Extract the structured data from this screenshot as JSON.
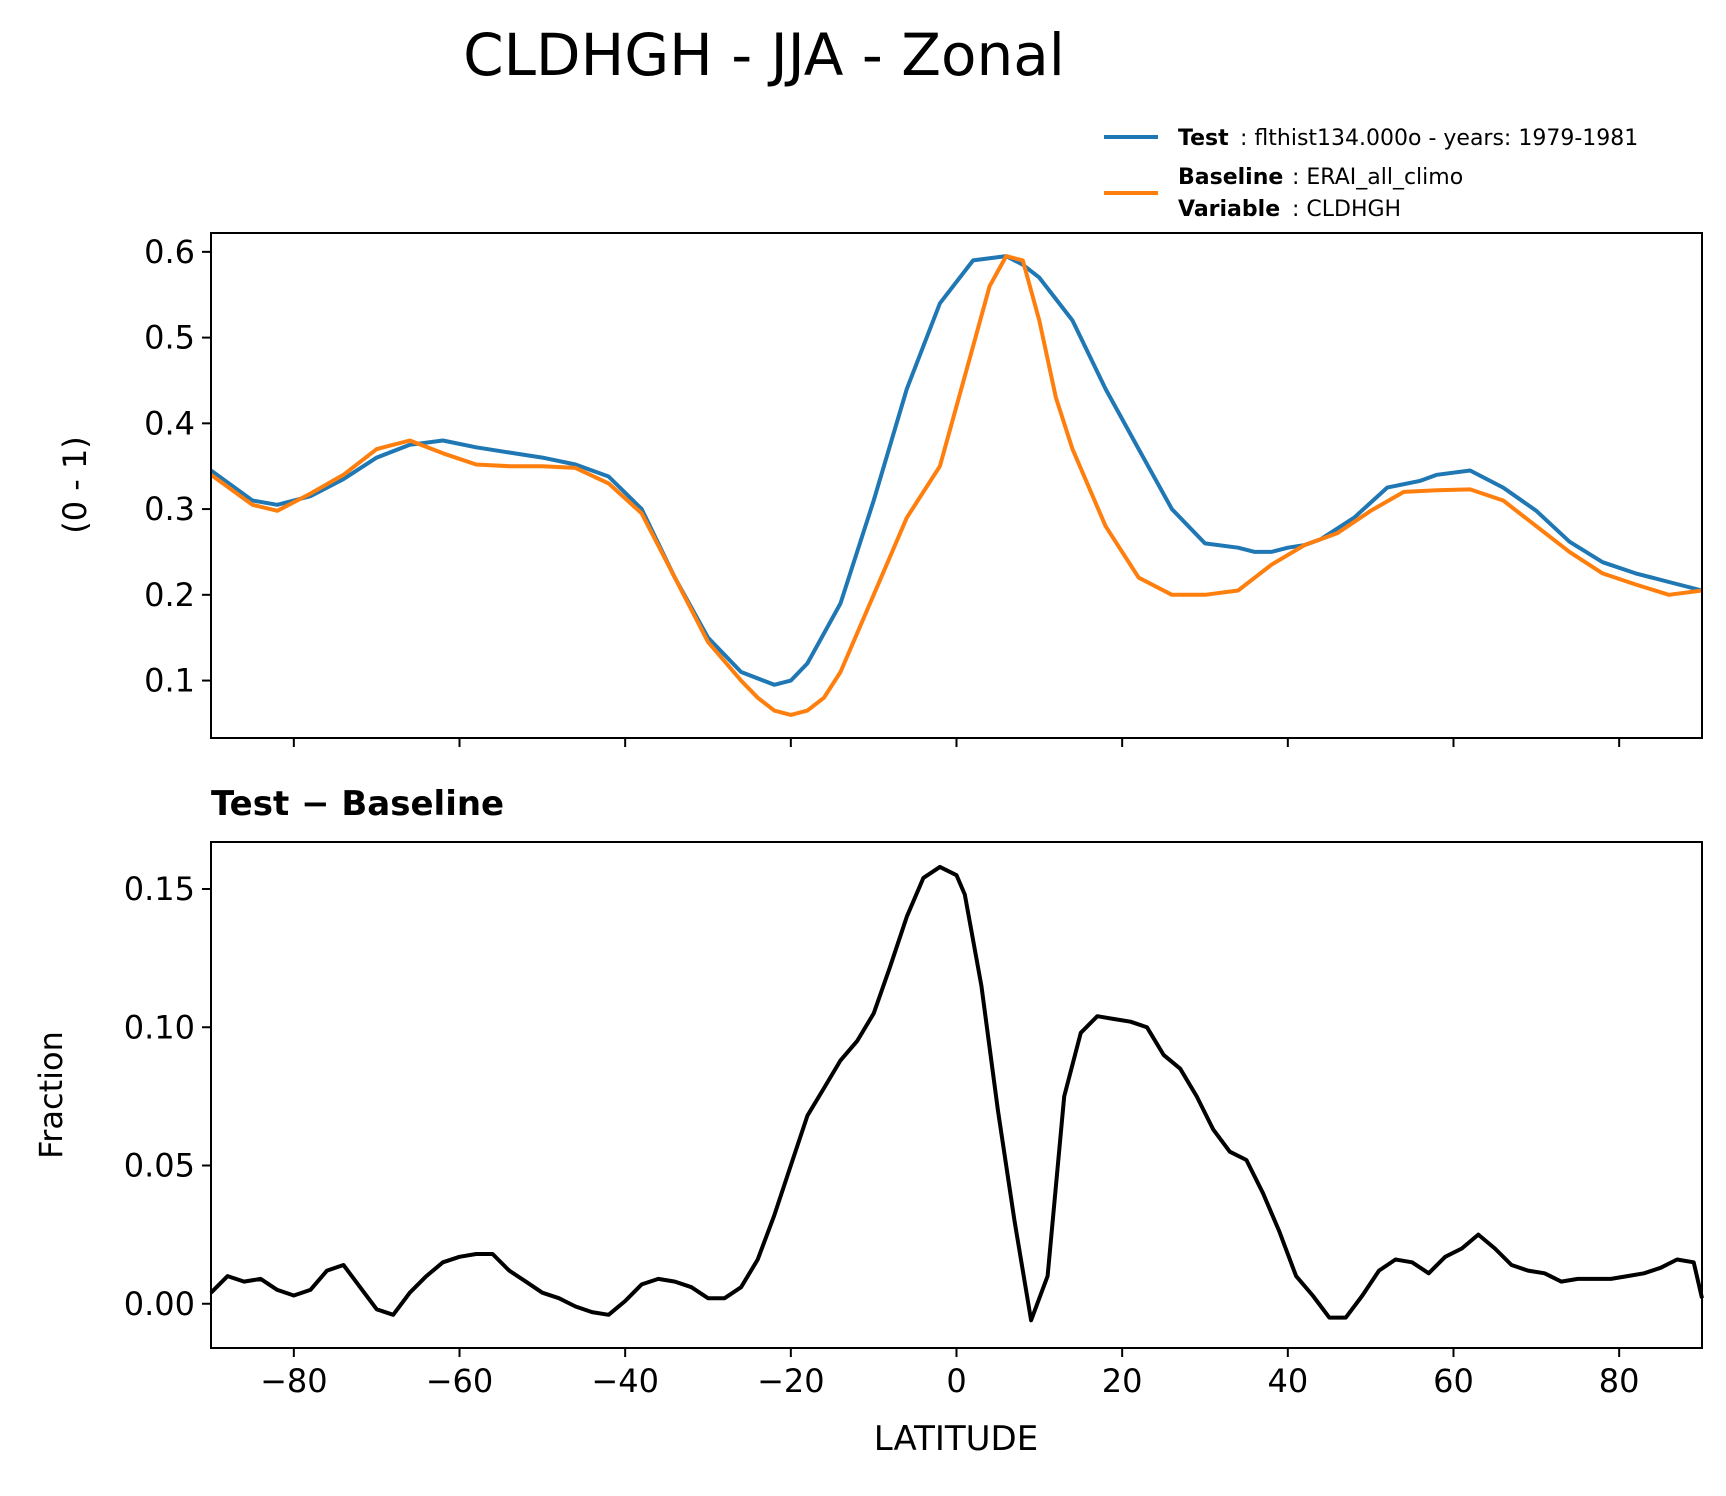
{
  "figure": {
    "title": "CLDHGH - JJA - Zonal",
    "legend": {
      "test": {
        "label": "Test",
        "value": ": flthist134.000o - years: 1979-1981"
      },
      "baseline": {
        "label": "Baseline",
        "value": ": ERAI_all_climo"
      },
      "variable": {
        "label": "Variable",
        "value": ": CLDHGH"
      }
    }
  },
  "chart_data": [
    {
      "type": "line",
      "ylabel": "(0 - 1)",
      "xlim": [
        -90,
        90
      ],
      "ylim": [
        0.033,
        0.622
      ],
      "yticks": [
        0.1,
        0.2,
        0.3,
        0.4,
        0.5,
        0.6
      ],
      "ytick_labels": [
        "0.1",
        "0.2",
        "0.3",
        "0.4",
        "0.5",
        "0.6"
      ],
      "xticks": [
        -80,
        -60,
        -40,
        -20,
        0,
        20,
        40,
        60,
        80
      ],
      "legend_position": "above-right",
      "series": [
        {
          "name": "Test",
          "color": "#1f77b4",
          "x": [
            -90,
            -85,
            -82,
            -78,
            -74,
            -70,
            -66,
            -62,
            -58,
            -54,
            -50,
            -46,
            -42,
            -38,
            -34,
            -30,
            -26,
            -22,
            -20,
            -18,
            -14,
            -10,
            -6,
            -2,
            2,
            6,
            8,
            10,
            14,
            18,
            22,
            26,
            30,
            34,
            36,
            38,
            40,
            42,
            44,
            48,
            52,
            56,
            58,
            62,
            66,
            70,
            74,
            78,
            82,
            86,
            90
          ],
          "y": [
            0.345,
            0.31,
            0.305,
            0.315,
            0.335,
            0.36,
            0.375,
            0.38,
            0.372,
            0.366,
            0.36,
            0.352,
            0.338,
            0.3,
            0.22,
            0.15,
            0.11,
            0.095,
            0.1,
            0.12,
            0.19,
            0.31,
            0.44,
            0.54,
            0.59,
            0.595,
            0.585,
            0.57,
            0.52,
            0.44,
            0.37,
            0.3,
            0.26,
            0.255,
            0.25,
            0.25,
            0.255,
            0.258,
            0.265,
            0.29,
            0.325,
            0.333,
            0.34,
            0.345,
            0.325,
            0.298,
            0.262,
            0.238,
            0.225,
            0.215,
            0.205
          ]
        },
        {
          "name": "Baseline",
          "color": "#ff7f0e",
          "x": [
            -90,
            -85,
            -82,
            -78,
            -74,
            -70,
            -66,
            -62,
            -58,
            -54,
            -50,
            -46,
            -42,
            -38,
            -34,
            -30,
            -26,
            -24,
            -22,
            -20,
            -18,
            -16,
            -14,
            -10,
            -6,
            -2,
            2,
            4,
            6,
            8,
            10,
            12,
            14,
            18,
            22,
            26,
            30,
            34,
            36,
            38,
            42,
            46,
            50,
            54,
            58,
            62,
            66,
            70,
            74,
            78,
            82,
            86,
            90
          ],
          "y": [
            0.34,
            0.305,
            0.298,
            0.318,
            0.34,
            0.37,
            0.38,
            0.365,
            0.352,
            0.35,
            0.35,
            0.348,
            0.33,
            0.295,
            0.22,
            0.145,
            0.1,
            0.08,
            0.065,
            0.06,
            0.065,
            0.08,
            0.11,
            0.2,
            0.29,
            0.35,
            0.49,
            0.56,
            0.595,
            0.59,
            0.52,
            0.43,
            0.37,
            0.28,
            0.22,
            0.2,
            0.2,
            0.205,
            0.22,
            0.235,
            0.258,
            0.272,
            0.298,
            0.32,
            0.322,
            0.323,
            0.31,
            0.28,
            0.25,
            0.225,
            0.212,
            0.2,
            0.205
          ]
        }
      ]
    },
    {
      "type": "line",
      "title": "Test − Baseline",
      "ylabel": "Fraction",
      "xlabel": "LATITUDE",
      "xlim": [
        -90,
        90
      ],
      "ylim": [
        -0.016,
        0.167
      ],
      "yticks": [
        0.0,
        0.05,
        0.1,
        0.15
      ],
      "ytick_labels": [
        "0.00",
        "0.05",
        "0.10",
        "0.15"
      ],
      "xticks": [
        -80,
        -60,
        -40,
        -20,
        0,
        20,
        40,
        60,
        80
      ],
      "xtick_labels": [
        "−80",
        "−60",
        "−40",
        "−20",
        "0",
        "20",
        "40",
        "60",
        "80"
      ],
      "series": [
        {
          "color": "#000000",
          "x": [
            -90,
            -88,
            -86,
            -84,
            -82,
            -80,
            -78,
            -76,
            -74,
            -72,
            -70,
            -68,
            -66,
            -64,
            -62,
            -60,
            -58,
            -56,
            -54,
            -52,
            -50,
            -48,
            -46,
            -44,
            -42,
            -40,
            -38,
            -36,
            -34,
            -32,
            -30,
            -28,
            -26,
            -24,
            -22,
            -20,
            -18,
            -16,
            -14,
            -12,
            -10,
            -8,
            -6,
            -4,
            -2,
            0,
            1,
            3,
            5,
            7,
            9,
            11,
            13,
            15,
            17,
            19,
            21,
            23,
            25,
            27,
            29,
            31,
            33,
            35,
            37,
            39,
            41,
            43,
            45,
            47,
            49,
            51,
            53,
            55,
            57,
            59,
            61,
            63,
            65,
            67,
            69,
            71,
            73,
            75,
            77,
            79,
            81,
            83,
            85,
            87,
            89,
            90
          ],
          "y": [
            0.004,
            0.01,
            0.008,
            0.009,
            0.005,
            0.003,
            0.005,
            0.012,
            0.014,
            0.006,
            -0.002,
            -0.004,
            0.004,
            0.01,
            0.015,
            0.017,
            0.018,
            0.018,
            0.012,
            0.008,
            0.004,
            0.002,
            -0.001,
            -0.003,
            -0.004,
            0.001,
            0.007,
            0.009,
            0.008,
            0.006,
            0.002,
            0.002,
            0.006,
            0.016,
            0.032,
            0.05,
            0.068,
            0.078,
            0.088,
            0.095,
            0.105,
            0.122,
            0.14,
            0.154,
            0.158,
            0.155,
            0.148,
            0.115,
            0.07,
            0.03,
            -0.006,
            0.01,
            0.075,
            0.098,
            0.104,
            0.103,
            0.102,
            0.1,
            0.09,
            0.085,
            0.075,
            0.063,
            0.055,
            0.052,
            0.04,
            0.026,
            0.01,
            0.003,
            -0.005,
            -0.005,
            0.003,
            0.012,
            0.016,
            0.015,
            0.011,
            0.017,
            0.02,
            0.025,
            0.02,
            0.014,
            0.012,
            0.011,
            0.008,
            0.009,
            0.009,
            0.009,
            0.01,
            0.011,
            0.013,
            0.016,
            0.015,
            0.002
          ]
        }
      ]
    }
  ]
}
